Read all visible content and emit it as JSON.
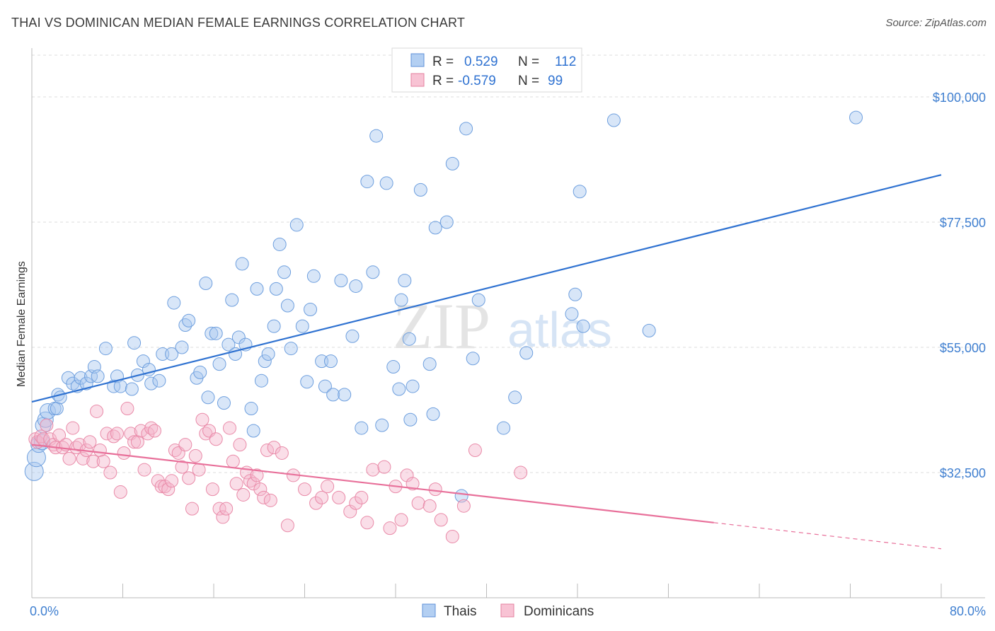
{
  "title": "THAI VS DOMINICAN MEDIAN FEMALE EARNINGS CORRELATION CHART",
  "source": "Source: ZipAtlas.com",
  "watermark": {
    "zip": "ZIP",
    "atlas": "atlas"
  },
  "colors": {
    "thai": "#a9c8f0",
    "thai_line": "#2f72d1",
    "dominican": "#f5b6cb",
    "dominican_line": "#e8709a",
    "tick_text": "#3f7fd0",
    "grid": "#dcdcdc"
  },
  "chart_data": {
    "type": "scatter",
    "title": "THAI VS DOMINICAN MEDIAN FEMALE EARNINGS CORRELATION CHART",
    "xlabel": "",
    "ylabel": "Median Female Earnings",
    "xlim": [
      0,
      80
    ],
    "ylim": [
      10000,
      107500
    ],
    "x_tick_labels": [
      "0.0%",
      "80.0%"
    ],
    "y_ticks": [
      32500,
      55000,
      77500,
      100000
    ],
    "y_tick_labels": [
      "$32,500",
      "$55,000",
      "$77,500",
      "$100,000"
    ],
    "grid": true,
    "legend_position": "top-center",
    "stats": [
      {
        "r_label": "R =",
        "r": "0.529",
        "n_label": "N =",
        "n": "112"
      },
      {
        "r_label": "R =",
        "r": "-0.579",
        "n_label": "N =",
        "n": "99"
      }
    ],
    "series": [
      {
        "name": "Thais",
        "trend": {
          "x": [
            0,
            80
          ],
          "y": [
            45200,
            86000
          ]
        },
        "points": [
          [
            0.2,
            32700
          ],
          [
            0.4,
            35200
          ],
          [
            0.6,
            37500
          ],
          [
            0.9,
            38000
          ],
          [
            1.0,
            41000
          ],
          [
            1.2,
            42000
          ],
          [
            1.4,
            43500
          ],
          [
            2.0,
            44000
          ],
          [
            2.2,
            44000
          ],
          [
            2.3,
            46500
          ],
          [
            2.5,
            46000
          ],
          [
            3.2,
            49500
          ],
          [
            3.6,
            48500
          ],
          [
            4.0,
            48000
          ],
          [
            4.3,
            49500
          ],
          [
            4.8,
            48500
          ],
          [
            5.2,
            49800
          ],
          [
            5.5,
            51500
          ],
          [
            5.8,
            49800
          ],
          [
            6.5,
            54800
          ],
          [
            7.2,
            48000
          ],
          [
            7.5,
            49800
          ],
          [
            7.8,
            48000
          ],
          [
            8.8,
            47500
          ],
          [
            9.3,
            50000
          ],
          [
            9.0,
            55800
          ],
          [
            9.8,
            52500
          ],
          [
            10.3,
            51000
          ],
          [
            10.5,
            48500
          ],
          [
            11.2,
            49000
          ],
          [
            11.5,
            53800
          ],
          [
            12.3,
            53800
          ],
          [
            12.5,
            63000
          ],
          [
            13.2,
            55000
          ],
          [
            13.5,
            59000
          ],
          [
            13.8,
            59800
          ],
          [
            14.5,
            49500
          ],
          [
            14.8,
            50500
          ],
          [
            15.3,
            66500
          ],
          [
            15.5,
            46000
          ],
          [
            15.8,
            57500
          ],
          [
            16.2,
            57500
          ],
          [
            16.5,
            52000
          ],
          [
            16.9,
            45000
          ],
          [
            17.3,
            55500
          ],
          [
            17.6,
            63500
          ],
          [
            17.9,
            53800
          ],
          [
            18.2,
            56800
          ],
          [
            18.5,
            70000
          ],
          [
            18.8,
            55500
          ],
          [
            19.3,
            44000
          ],
          [
            19.5,
            40000
          ],
          [
            19.8,
            65500
          ],
          [
            20.2,
            49000
          ],
          [
            20.5,
            52500
          ],
          [
            20.8,
            53800
          ],
          [
            21.3,
            58800
          ],
          [
            21.5,
            65500
          ],
          [
            21.8,
            73500
          ],
          [
            22.2,
            68500
          ],
          [
            22.5,
            62500
          ],
          [
            22.8,
            54800
          ],
          [
            23.3,
            77000
          ],
          [
            23.8,
            58800
          ],
          [
            24.2,
            48800
          ],
          [
            24.5,
            61800
          ],
          [
            24.8,
            67800
          ],
          [
            25.5,
            52500
          ],
          [
            25.8,
            48000
          ],
          [
            26.3,
            52500
          ],
          [
            26.5,
            46500
          ],
          [
            27.2,
            67000
          ],
          [
            27.5,
            46500
          ],
          [
            28.2,
            57000
          ],
          [
            28.5,
            66000
          ],
          [
            29.0,
            40500
          ],
          [
            29.5,
            84800
          ],
          [
            30.0,
            68500
          ],
          [
            30.3,
            93000
          ],
          [
            30.8,
            41000
          ],
          [
            31.2,
            84500
          ],
          [
            31.8,
            51500
          ],
          [
            32.3,
            47500
          ],
          [
            32.5,
            63500
          ],
          [
            32.8,
            67000
          ],
          [
            33.2,
            56500
          ],
          [
            33.3,
            42000
          ],
          [
            33.5,
            48000
          ],
          [
            34.2,
            83300
          ],
          [
            35.0,
            52000
          ],
          [
            35.3,
            43000
          ],
          [
            35.5,
            76500
          ],
          [
            36.5,
            77500
          ],
          [
            37.0,
            88000
          ],
          [
            37.8,
            28300
          ],
          [
            38.2,
            94300
          ],
          [
            38.8,
            53000
          ],
          [
            39.3,
            63500
          ],
          [
            41.5,
            40500
          ],
          [
            42.5,
            46000
          ],
          [
            43.5,
            54000
          ],
          [
            47.5,
            61000
          ],
          [
            47.8,
            64500
          ],
          [
            48.2,
            83000
          ],
          [
            48.5,
            58800
          ],
          [
            51.2,
            95800
          ],
          [
            54.3,
            58000
          ],
          [
            72.5,
            96300
          ]
        ]
      },
      {
        "name": "Dominicans",
        "trend": {
          "x": [
            0,
            60
          ],
          "y": [
            37500,
            23500
          ]
        },
        "trend_dashed": {
          "x": [
            60,
            80
          ],
          "y": [
            23500,
            18800
          ]
        },
        "points": [
          [
            0.3,
            38500
          ],
          [
            0.5,
            38000
          ],
          [
            0.8,
            39000
          ],
          [
            1.0,
            38500
          ],
          [
            1.3,
            41000
          ],
          [
            1.6,
            38500
          ],
          [
            1.9,
            37500
          ],
          [
            2.1,
            37000
          ],
          [
            2.4,
            39200
          ],
          [
            2.7,
            37000
          ],
          [
            3.0,
            37500
          ],
          [
            3.3,
            35000
          ],
          [
            3.6,
            40500
          ],
          [
            3.9,
            37000
          ],
          [
            4.2,
            37500
          ],
          [
            4.5,
            35000
          ],
          [
            4.8,
            36500
          ],
          [
            5.1,
            38000
          ],
          [
            5.4,
            34500
          ],
          [
            5.7,
            43500
          ],
          [
            6.0,
            36500
          ],
          [
            6.3,
            34500
          ],
          [
            6.6,
            39500
          ],
          [
            6.9,
            32500
          ],
          [
            7.2,
            39000
          ],
          [
            7.5,
            39500
          ],
          [
            7.8,
            29000
          ],
          [
            8.1,
            36000
          ],
          [
            8.4,
            44000
          ],
          [
            8.7,
            39500
          ],
          [
            9.0,
            38000
          ],
          [
            9.3,
            38000
          ],
          [
            9.6,
            40000
          ],
          [
            9.9,
            33000
          ],
          [
            10.2,
            39500
          ],
          [
            10.5,
            40500
          ],
          [
            10.8,
            40000
          ],
          [
            11.1,
            31000
          ],
          [
            11.4,
            30000
          ],
          [
            11.7,
            30000
          ],
          [
            12.0,
            29500
          ],
          [
            12.3,
            31000
          ],
          [
            12.6,
            36500
          ],
          [
            12.9,
            36000
          ],
          [
            13.2,
            33500
          ],
          [
            13.5,
            37500
          ],
          [
            13.8,
            31500
          ],
          [
            14.1,
            26000
          ],
          [
            14.4,
            35500
          ],
          [
            14.7,
            33000
          ],
          [
            15.0,
            42000
          ],
          [
            15.3,
            39500
          ],
          [
            15.6,
            40000
          ],
          [
            15.9,
            29500
          ],
          [
            16.2,
            38500
          ],
          [
            16.5,
            26000
          ],
          [
            16.8,
            24500
          ],
          [
            17.1,
            26000
          ],
          [
            17.4,
            40500
          ],
          [
            17.7,
            34500
          ],
          [
            18.0,
            30500
          ],
          [
            18.3,
            37500
          ],
          [
            18.6,
            28500
          ],
          [
            18.9,
            32500
          ],
          [
            19.2,
            31000
          ],
          [
            19.5,
            30500
          ],
          [
            19.8,
            32000
          ],
          [
            20.1,
            29500
          ],
          [
            20.4,
            28000
          ],
          [
            20.7,
            36500
          ],
          [
            21.0,
            27500
          ],
          [
            21.3,
            37000
          ],
          [
            22.0,
            36000
          ],
          [
            22.5,
            23000
          ],
          [
            23.0,
            32000
          ],
          [
            24.0,
            29500
          ],
          [
            25.0,
            27000
          ],
          [
            25.5,
            28000
          ],
          [
            26.0,
            30000
          ],
          [
            27.0,
            28000
          ],
          [
            28.0,
            25500
          ],
          [
            28.5,
            27000
          ],
          [
            29.0,
            28000
          ],
          [
            29.5,
            23500
          ],
          [
            30.0,
            33000
          ],
          [
            31.0,
            33500
          ],
          [
            31.5,
            22500
          ],
          [
            32.0,
            30000
          ],
          [
            32.5,
            24000
          ],
          [
            33.0,
            32000
          ],
          [
            33.5,
            30500
          ],
          [
            34.0,
            27000
          ],
          [
            35.0,
            26500
          ],
          [
            35.5,
            29500
          ],
          [
            36.0,
            24000
          ],
          [
            37.0,
            21000
          ],
          [
            38.0,
            26500
          ],
          [
            39.0,
            36500
          ],
          [
            43.0,
            32500
          ]
        ]
      }
    ]
  },
  "bottom_legend": [
    {
      "label": "Thais"
    },
    {
      "label": "Dominicans"
    }
  ]
}
